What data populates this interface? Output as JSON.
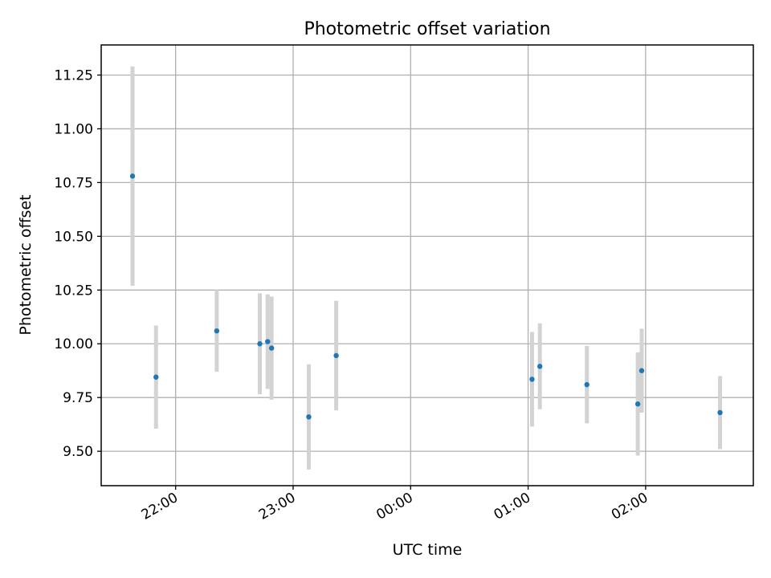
{
  "chart_data": {
    "type": "scatter",
    "title": "Photometric offset variation",
    "xlabel": "UTC time",
    "ylabel": "Photometric offset",
    "x_unit": "UTC time",
    "xlim": [
      "21:22",
      "02:55"
    ],
    "ylim": [
      9.34,
      11.39
    ],
    "grid": true,
    "x_tick_labels": [
      "22:00",
      "23:00",
      "00:00",
      "01:00",
      "02:00"
    ],
    "y_tick_labels": [
      "9.50",
      "9.75",
      "10.00",
      "10.25",
      "10.50",
      "10.75",
      "11.00",
      "11.25"
    ],
    "colors": {
      "point": "#1f77b4",
      "errorbar": "#d3d3d3"
    },
    "series": [
      {
        "points": [
          {
            "x": "21:38",
            "y": 10.78,
            "err": 0.51
          },
          {
            "x": "21:50",
            "y": 9.845,
            "err": 0.24
          },
          {
            "x": "22:21",
            "y": 10.06,
            "err": 0.19
          },
          {
            "x": "22:43",
            "y": 10.0,
            "err": 0.235
          },
          {
            "x": "22:47",
            "y": 10.01,
            "err": 0.22
          },
          {
            "x": "22:49",
            "y": 9.98,
            "err": 0.24
          },
          {
            "x": "23:08",
            "y": 9.66,
            "err": 0.245
          },
          {
            "x": "23:22",
            "y": 9.945,
            "err": 0.255
          },
          {
            "x": "01:02",
            "y": 9.835,
            "err": 0.22
          },
          {
            "x": "01:06",
            "y": 9.895,
            "err": 0.2
          },
          {
            "x": "01:30",
            "y": 9.81,
            "err": 0.18
          },
          {
            "x": "01:56",
            "y": 9.72,
            "err": 0.24
          },
          {
            "x": "01:58",
            "y": 9.875,
            "err": 0.195
          },
          {
            "x": "02:38",
            "y": 9.68,
            "err": 0.17
          }
        ]
      }
    ]
  }
}
